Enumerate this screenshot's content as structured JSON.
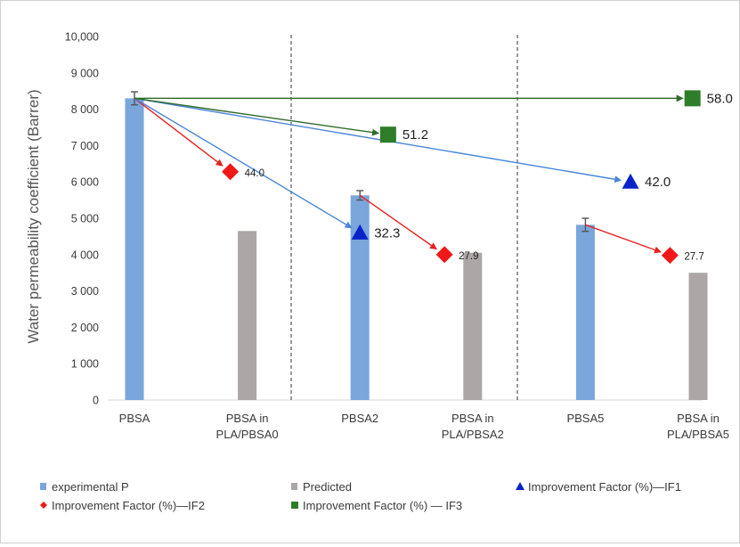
{
  "chart_data": {
    "type": "bar",
    "ylabel": "Water permeability coefficient (Barrer)",
    "ylim": [
      0,
      10000
    ],
    "yticks": [
      "0",
      "1 000",
      "2 000",
      "3 000",
      "4 000",
      "5 000",
      "6 000",
      "7 000",
      "8 000",
      "9 000",
      "10,000"
    ],
    "ytick_values": [
      0,
      1000,
      2000,
      3000,
      4000,
      5000,
      6000,
      7000,
      8000,
      9000,
      10000
    ],
    "categories": [
      "PBSA",
      "PBSA in PLA/PBSA0",
      "PBSA2",
      "PBSA in PLA/PBSA2",
      "PBSA5",
      "PBSA in PLA/PBSA5"
    ],
    "series": [
      {
        "name": "experimental P",
        "color": "#7aa6dc",
        "values": [
          8300,
          null,
          5630,
          null,
          4820,
          null
        ],
        "errors": [
          180,
          null,
          130,
          null,
          180,
          null
        ]
      },
      {
        "name": "Predicted",
        "color": "#aca7a6",
        "values": [
          null,
          4650,
          null,
          4050,
          null,
          3500
        ]
      }
    ],
    "markers": [
      {
        "name": "Improvement Factor (%)—IF1",
        "shape": "triangle",
        "color": "#0a23c8",
        "points": [
          {
            "x": 2.0,
            "y": 4600,
            "label": "32.3"
          },
          {
            "x": 4.4,
            "y": 6000,
            "label": "42.0"
          }
        ]
      },
      {
        "name": "Improvement Factor (%)—IF2",
        "shape": "diamond",
        "color": "#f01818",
        "points": [
          {
            "x": 0.85,
            "y": 6280,
            "label": "44.0"
          },
          {
            "x": 2.75,
            "y": 4000,
            "label": "27.9"
          },
          {
            "x": 4.75,
            "y": 3980,
            "label": "27.7"
          }
        ]
      },
      {
        "name": "Improvement Factor (%) — IF3",
        "shape": "square",
        "color": "#2e7d28",
        "points": [
          {
            "x": 2.25,
            "y": 7300,
            "label": "51.2"
          },
          {
            "x": 4.95,
            "y": 8300,
            "label": "58.0"
          }
        ]
      }
    ],
    "arrows": [
      {
        "color": "#e82020",
        "from": [
          0,
          8300
        ],
        "to": [
          0.85,
          6280
        ]
      },
      {
        "color": "#e82020",
        "from": [
          2.0,
          5630
        ],
        "to": [
          2.75,
          4000
        ]
      },
      {
        "color": "#e82020",
        "from": [
          4.0,
          4820
        ],
        "to": [
          4.75,
          3980
        ]
      },
      {
        "color": "#4a86d8",
        "from": [
          0,
          8300
        ],
        "to": [
          2.0,
          4600
        ]
      },
      {
        "color": "#4a86d8",
        "from": [
          0,
          8300
        ],
        "to": [
          4.4,
          6000
        ]
      },
      {
        "color": "#2f6b2a",
        "from": [
          0,
          8300
        ],
        "to": [
          2.25,
          7300
        ]
      },
      {
        "color": "#2f6b2a",
        "from": [
          0,
          8300
        ],
        "to": [
          4.95,
          8300
        ]
      }
    ],
    "legend": {
      "placement": "bottom",
      "items": [
        {
          "label": "experimental P",
          "symbol": "bar",
          "color": "#7aa6dc"
        },
        {
          "label": "Predicted",
          "symbol": "bar",
          "color": "#aca7a6"
        },
        {
          "label": "Improvement Factor (%)—IF1",
          "symbol": "triangle",
          "color": "#0a23c8"
        },
        {
          "label": "Improvement Factor (%)—IF2",
          "symbol": "diamond",
          "color": "#f01818"
        },
        {
          "label": "Improvement Factor (%) — IF3",
          "symbol": "square",
          "color": "#2e7d28"
        }
      ]
    },
    "grid": false,
    "group_separators": "dashed"
  }
}
